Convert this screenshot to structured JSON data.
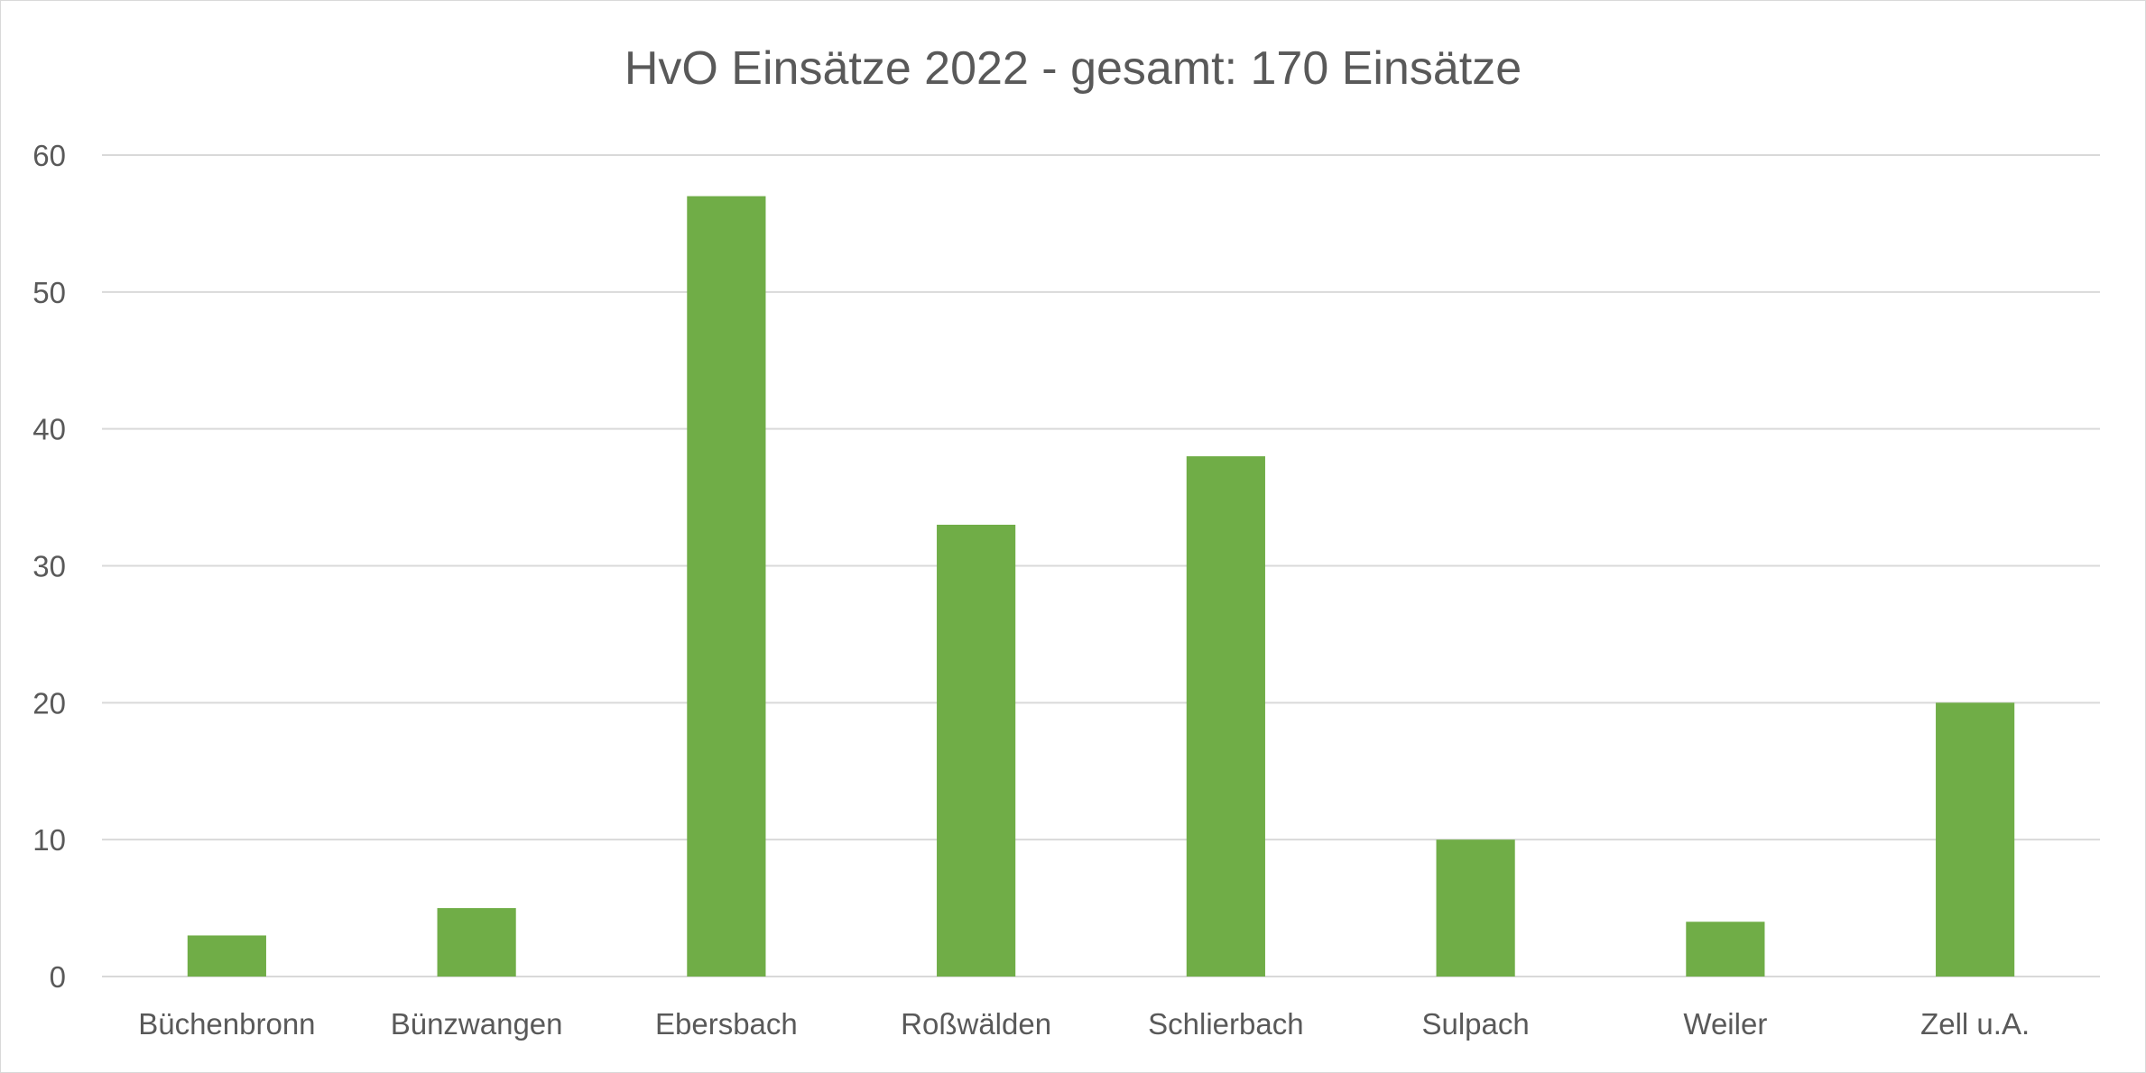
{
  "chart_data": {
    "type": "bar",
    "title": "HvO Einsätze 2022 - gesamt: 170 Einsätze",
    "categories": [
      "Büchenbronn",
      "Bünzwangen",
      "Ebersbach",
      "Roßwälden",
      "Schlierbach",
      "Sulpach",
      "Weiler",
      "Zell u.A."
    ],
    "values": [
      3,
      5,
      57,
      33,
      38,
      10,
      4,
      20
    ],
    "ylim": [
      0,
      60
    ],
    "yticks": [
      0,
      10,
      20,
      30,
      40,
      50,
      60
    ],
    "grid": true,
    "legend": "none",
    "bar_color": "#70ad47"
  }
}
